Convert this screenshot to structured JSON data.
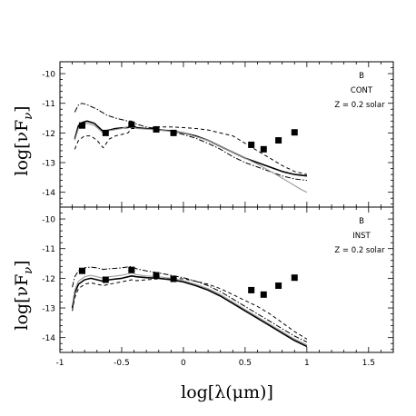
{
  "figure": {
    "xlabel": "log[λ(μm)]",
    "ylabel_top": "log[νF",
    "ylabel_sub": "ν",
    "ylabel_end": "]"
  },
  "chart_data": [
    {
      "type": "line",
      "panel": "top",
      "text": [
        "B",
        "CONT",
        "Z = 0.2 solar"
      ],
      "xlim": [
        -1,
        1.7
      ],
      "ylim": [
        -14.5,
        -9.6
      ],
      "xticks": [
        -1,
        -0.5,
        0,
        0.5,
        1,
        1.5
      ],
      "xtick_labels": [
        "-1",
        "-0.5",
        "0",
        "0.5",
        "1",
        "1.5"
      ],
      "yticks": [
        -14,
        -13,
        -12,
        -11,
        -10
      ],
      "ytick_labels": [
        "-14",
        "-13",
        "-12",
        "-11",
        "-10"
      ],
      "grid": false,
      "series": [
        {
          "style": "solid",
          "x": [
            -0.88,
            -0.85,
            -0.82,
            -0.78,
            -0.72,
            -0.65,
            -0.6,
            -0.55,
            -0.5,
            -0.45,
            -0.42,
            -0.38,
            -0.3,
            -0.2,
            -0.1,
            0,
            0.1,
            0.2,
            0.3,
            0.4,
            0.5,
            0.6,
            0.7,
            0.8,
            0.9,
            1.0
          ],
          "y": [
            -12.2,
            -11.75,
            -11.65,
            -11.6,
            -11.68,
            -11.95,
            -11.9,
            -11.85,
            -11.83,
            -11.82,
            -11.72,
            -11.82,
            -11.85,
            -11.9,
            -11.93,
            -12.0,
            -12.1,
            -12.25,
            -12.45,
            -12.65,
            -12.85,
            -13.0,
            -13.15,
            -13.3,
            -13.4,
            -13.45
          ]
        },
        {
          "style": "dash-dot",
          "x": [
            -0.88,
            -0.85,
            -0.82,
            -0.78,
            -0.7,
            -0.62,
            -0.55,
            -0.45,
            -0.42,
            -0.38,
            -0.3,
            -0.2,
            -0.1,
            0,
            0.1,
            0.2,
            0.3,
            0.4,
            0.5,
            0.6,
            0.7,
            0.8,
            0.9,
            1.0
          ],
          "y": [
            -11.3,
            -11.05,
            -11.0,
            -11.05,
            -11.2,
            -11.4,
            -11.5,
            -11.6,
            -11.6,
            -11.7,
            -11.8,
            -11.88,
            -11.95,
            -12.05,
            -12.18,
            -12.35,
            -12.55,
            -12.8,
            -13.0,
            -13.15,
            -13.3,
            -13.45,
            -13.55,
            -13.6
          ]
        },
        {
          "style": "dashed",
          "x": [
            -0.88,
            -0.85,
            -0.8,
            -0.75,
            -0.7,
            -0.65,
            -0.6,
            -0.55,
            -0.5,
            -0.45,
            -0.42,
            -0.38,
            -0.3,
            -0.2,
            -0.1,
            0,
            0.1,
            0.2,
            0.3,
            0.4,
            0.5,
            0.6,
            0.7,
            0.8,
            0.9,
            1.0
          ],
          "y": [
            -12.55,
            -12.25,
            -12.1,
            -12.1,
            -12.25,
            -12.5,
            -12.2,
            -12.1,
            -12.05,
            -12.0,
            -11.85,
            -11.85,
            -11.85,
            -11.8,
            -11.8,
            -11.82,
            -11.85,
            -11.9,
            -12.0,
            -12.1,
            -12.35,
            -12.6,
            -12.85,
            -13.1,
            -13.3,
            -13.4
          ]
        },
        {
          "style": "grey",
          "x": [
            -0.88,
            -0.85,
            -0.82,
            -0.78,
            -0.72,
            -0.65,
            -0.6,
            -0.5,
            -0.42,
            -0.38,
            -0.2,
            0,
            0.2,
            0.4,
            0.6,
            0.75,
            0.85,
            0.95,
            1.0
          ],
          "y": [
            -12.25,
            -11.85,
            -11.72,
            -11.68,
            -11.75,
            -12.0,
            -11.92,
            -11.85,
            -11.75,
            -11.85,
            -11.9,
            -12.0,
            -12.25,
            -12.65,
            -13.05,
            -13.4,
            -13.65,
            -13.9,
            -14.0
          ]
        }
      ],
      "points": {
        "x": [
          -0.82,
          -0.63,
          -0.42,
          -0.22,
          -0.08,
          0.55,
          0.65,
          0.77,
          0.9
        ],
        "y": [
          -11.75,
          -12.0,
          -11.72,
          -11.88,
          -12.0,
          -12.4,
          -12.55,
          -12.25,
          -11.98
        ]
      }
    },
    {
      "type": "line",
      "panel": "bottom",
      "text": [
        "B",
        "INST",
        "Z = 0.2 solar"
      ],
      "xlim": [
        -1,
        1.7
      ],
      "ylim": [
        -14.5,
        -9.6
      ],
      "xticks": [
        -1,
        -0.5,
        0,
        0.5,
        1,
        1.5
      ],
      "xtick_labels": [
        "-1",
        "-0.5",
        "0",
        "0.5",
        "1",
        "1.5"
      ],
      "yticks": [
        -14,
        -13,
        -12,
        -11,
        -10
      ],
      "ytick_labels": [
        "-14",
        "-13",
        "-12",
        "-11",
        "-10"
      ],
      "grid": false,
      "series": [
        {
          "style": "solid",
          "x": [
            -0.9,
            -0.88,
            -0.85,
            -0.8,
            -0.75,
            -0.7,
            -0.65,
            -0.6,
            -0.5,
            -0.42,
            -0.38,
            -0.3,
            -0.2,
            -0.1,
            0,
            0.1,
            0.2,
            0.3,
            0.4,
            0.5,
            0.6,
            0.7,
            0.8,
            0.9,
            1.0
          ],
          "y": [
            -13.0,
            -12.5,
            -12.2,
            -12.05,
            -12.0,
            -12.05,
            -12.1,
            -12.05,
            -12.0,
            -11.92,
            -11.95,
            -11.98,
            -12.0,
            -12.05,
            -12.12,
            -12.25,
            -12.4,
            -12.6,
            -12.85,
            -13.1,
            -13.35,
            -13.6,
            -13.85,
            -14.1,
            -14.3
          ]
        },
        {
          "style": "dash-dot",
          "x": [
            -0.9,
            -0.88,
            -0.85,
            -0.8,
            -0.75,
            -0.7,
            -0.65,
            -0.6,
            -0.5,
            -0.42,
            -0.38,
            -0.3,
            -0.2,
            -0.1,
            0,
            0.1,
            0.2,
            0.3,
            0.4,
            0.5,
            0.6,
            0.7,
            0.8,
            0.9,
            1.0
          ],
          "y": [
            -12.3,
            -11.95,
            -11.75,
            -11.65,
            -11.62,
            -11.65,
            -11.7,
            -11.68,
            -11.65,
            -11.6,
            -11.68,
            -11.75,
            -11.82,
            -11.9,
            -11.98,
            -12.1,
            -12.25,
            -12.45,
            -12.7,
            -12.95,
            -13.2,
            -13.45,
            -13.7,
            -13.95,
            -14.15
          ]
        },
        {
          "style": "dashed",
          "x": [
            -0.9,
            -0.88,
            -0.85,
            -0.8,
            -0.75,
            -0.7,
            -0.65,
            -0.6,
            -0.5,
            -0.42,
            -0.38,
            -0.3,
            -0.2,
            -0.1,
            0,
            0.1,
            0.2,
            0.3,
            0.4,
            0.5,
            0.6,
            0.7,
            0.8,
            0.9,
            1.0
          ],
          "y": [
            -13.1,
            -12.65,
            -12.35,
            -12.2,
            -12.15,
            -12.2,
            -12.25,
            -12.2,
            -12.12,
            -12.05,
            -12.08,
            -12.05,
            -12.02,
            -12.0,
            -12.02,
            -12.1,
            -12.2,
            -12.35,
            -12.55,
            -12.75,
            -12.95,
            -13.2,
            -13.5,
            -13.8,
            -14.05
          ]
        },
        {
          "style": "grey",
          "x": [
            -0.9,
            -0.88,
            -0.85,
            -0.8,
            -0.75,
            -0.7,
            -0.65,
            -0.6,
            -0.5,
            -0.42,
            -0.38,
            -0.3,
            -0.2,
            -0.1,
            0,
            0.1,
            0.2,
            0.3,
            0.4,
            0.5,
            0.6,
            0.7,
            0.8,
            0.9,
            1.0
          ],
          "y": [
            -12.9,
            -12.4,
            -12.1,
            -11.95,
            -11.9,
            -11.95,
            -12.0,
            -11.95,
            -11.9,
            -11.82,
            -11.88,
            -11.92,
            -11.95,
            -12.0,
            -12.08,
            -12.2,
            -12.35,
            -12.55,
            -12.8,
            -13.05,
            -13.3,
            -13.55,
            -13.8,
            -14.05,
            -14.25
          ]
        }
      ],
      "points": {
        "x": [
          -0.82,
          -0.63,
          -0.42,
          -0.22,
          -0.08,
          0.55,
          0.65,
          0.77,
          0.9
        ],
        "y": [
          -11.75,
          -12.05,
          -11.72,
          -11.9,
          -12.02,
          -12.4,
          -12.55,
          -12.25,
          -11.98
        ]
      }
    }
  ]
}
